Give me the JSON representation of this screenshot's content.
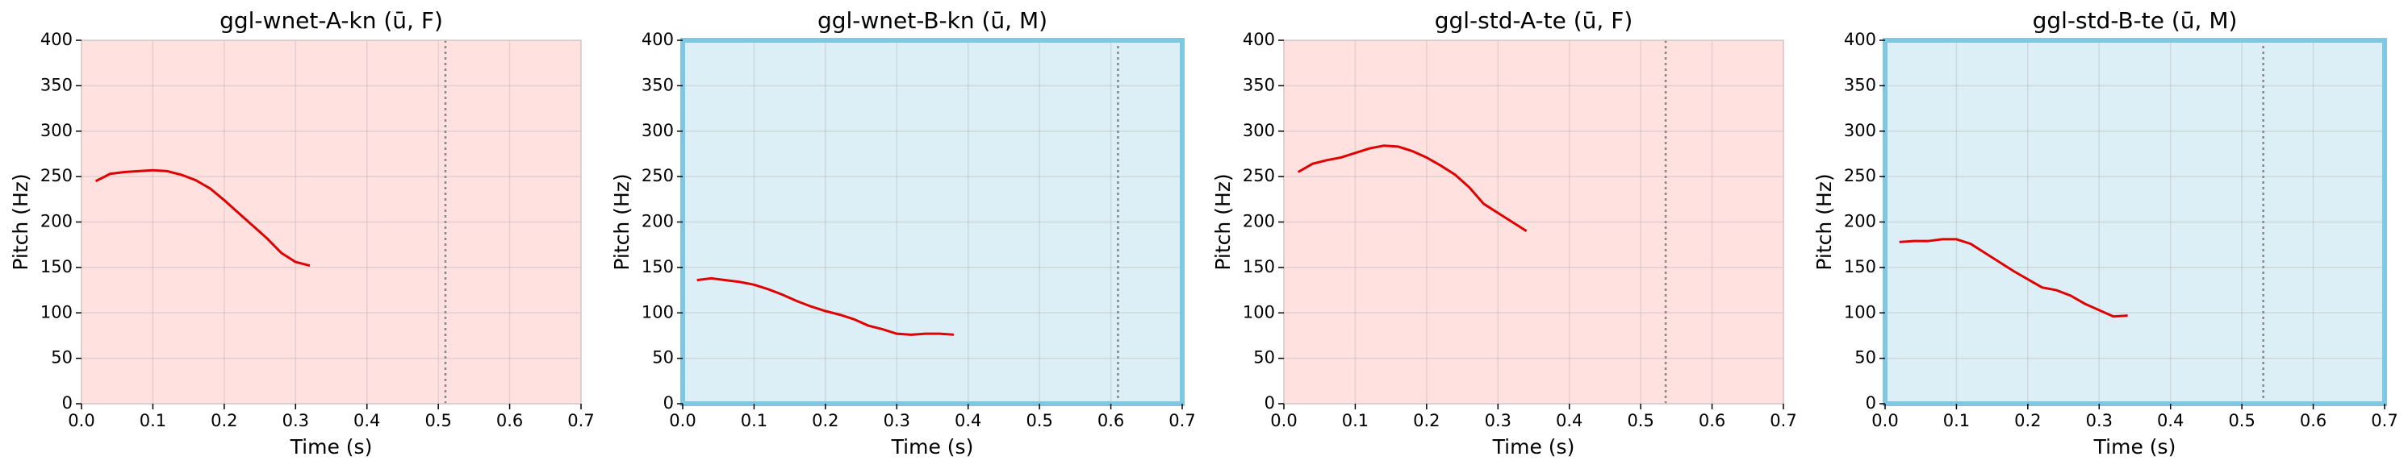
{
  "chart_data": [
    {
      "type": "line",
      "title": "ggl-wnet-A-kn (ū, F)",
      "xlabel": "Time (s)",
      "ylabel": "Pitch (Hz)",
      "x": [
        0.02,
        0.04,
        0.06,
        0.08,
        0.1,
        0.12,
        0.14,
        0.16,
        0.18,
        0.2,
        0.22,
        0.24,
        0.26,
        0.28,
        0.3,
        0.32
      ],
      "series": [
        {
          "color": "#e00000",
          "values": [
            245,
            253,
            255,
            256,
            257,
            256,
            252,
            246,
            237,
            224,
            210,
            196,
            182,
            166,
            156,
            152
          ]
        }
      ],
      "vline": 0.51,
      "facecolor": "#ffe1e0",
      "xlim": [
        0,
        0.7
      ],
      "ylim": [
        0,
        400
      ],
      "xticks": [
        {
          "value": 0,
          "label": "0.0"
        },
        0.1,
        0.2,
        0.3,
        0.4,
        0.5,
        0.6,
        0.7
      ],
      "yticks": [
        0,
        50,
        100,
        150,
        200,
        250,
        300,
        350,
        400
      ],
      "grid": true
    },
    {
      "type": "line",
      "title": "ggl-wnet-B-kn (ū, M)",
      "xlabel": "Time (s)",
      "ylabel": "Pitch (Hz)",
      "x": [
        0.02,
        0.04,
        0.06,
        0.08,
        0.1,
        0.12,
        0.14,
        0.16,
        0.18,
        0.2,
        0.22,
        0.24,
        0.26,
        0.28,
        0.3,
        0.32,
        0.34,
        0.36,
        0.38
      ],
      "series": [
        {
          "color": "#e00000",
          "values": [
            136,
            138,
            136,
            134,
            131,
            126,
            120,
            113,
            107,
            102,
            98,
            93,
            86,
            82,
            77,
            76,
            77,
            77,
            76
          ]
        }
      ],
      "vline": 0.61,
      "facecolor": "#ddeff6",
      "edgecolor": "#7ec8e3",
      "xlim": [
        0,
        0.7
      ],
      "ylim": [
        0,
        400
      ],
      "xticks": [
        {
          "value": 0,
          "label": "0.0"
        },
        0.1,
        0.2,
        0.3,
        0.4,
        0.5,
        0.6,
        0.7
      ],
      "yticks": [
        0,
        50,
        100,
        150,
        200,
        250,
        300,
        350,
        400
      ],
      "grid": true
    },
    {
      "type": "line",
      "title": "ggl-std-A-te (ū, F)",
      "xlabel": "Time (s)",
      "ylabel": "Pitch (Hz)",
      "x": [
        0.02,
        0.04,
        0.06,
        0.08,
        0.1,
        0.12,
        0.14,
        0.16,
        0.18,
        0.2,
        0.22,
        0.24,
        0.26,
        0.28,
        0.3,
        0.32,
        0.34
      ],
      "series": [
        {
          "color": "#e00000",
          "values": [
            255,
            264,
            268,
            271,
            276,
            281,
            284,
            283,
            278,
            271,
            262,
            252,
            238,
            220,
            210,
            200,
            190
          ]
        }
      ],
      "vline": 0.535,
      "facecolor": "#ffe1e0",
      "xlim": [
        0,
        0.7
      ],
      "ylim": [
        0,
        400
      ],
      "xticks": [
        {
          "value": 0,
          "label": "0.0"
        },
        0.1,
        0.2,
        0.3,
        0.4,
        0.5,
        0.6,
        0.7
      ],
      "yticks": [
        0,
        50,
        100,
        150,
        200,
        250,
        300,
        350,
        400
      ],
      "grid": true
    },
    {
      "type": "line",
      "title": "ggl-std-B-te (ū, M)",
      "xlabel": "Time (s)",
      "ylabel": "Pitch (Hz)",
      "x": [
        0.02,
        0.04,
        0.06,
        0.08,
        0.1,
        0.12,
        0.14,
        0.16,
        0.18,
        0.2,
        0.22,
        0.24,
        0.26,
        0.28,
        0.3,
        0.32,
        0.34
      ],
      "series": [
        {
          "color": "#e00000",
          "values": [
            178,
            179,
            179,
            181,
            181,
            176,
            166,
            156,
            146,
            137,
            128,
            125,
            119,
            110,
            103,
            96,
            97
          ]
        }
      ],
      "vline": 0.53,
      "facecolor": "#ddeff6",
      "edgecolor": "#7ec8e3",
      "xlim": [
        0,
        0.7
      ],
      "ylim": [
        0,
        400
      ],
      "xticks": [
        {
          "value": 0,
          "label": "0.0"
        },
        0.1,
        0.2,
        0.3,
        0.4,
        0.5,
        0.6,
        0.7
      ],
      "yticks": [
        0,
        50,
        100,
        150,
        200,
        250,
        300,
        350,
        400
      ],
      "grid": true
    }
  ]
}
